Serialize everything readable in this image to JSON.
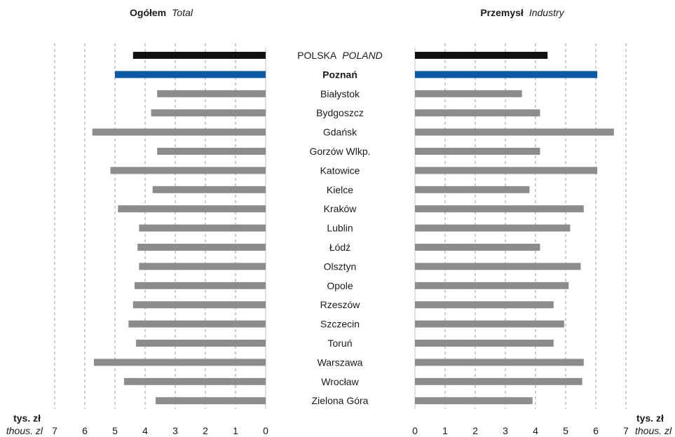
{
  "chart_data": {
    "type": "bar",
    "orientation": "horizontal",
    "categories": [
      "POLSKA",
      "Poznań",
      "Białystok",
      "Bydgoszcz",
      "Gdańsk",
      "Gorzów Wlkp.",
      "Katowice",
      "Kielce",
      "Kraków",
      "Lublin",
      "Łódź",
      "Olsztyn",
      "Opole",
      "Rzeszów",
      "Szczecin",
      "Toruń",
      "Warszawa",
      "Wrocław",
      "Zielona Góra"
    ],
    "category_sublabels": {
      "POLSKA": "POLAND"
    },
    "highlight": {
      "POLSKA": "#111111",
      "Poznań": "#0b5aa3"
    },
    "bar_color": "#8c8c8c",
    "grid": true,
    "grid_style": "dashed",
    "panels": [
      {
        "title": "Ogółem",
        "subtitle": "Total",
        "direction": "left",
        "xlim": [
          0,
          7
        ],
        "ticks": [
          0,
          1,
          2,
          3,
          4,
          5,
          6,
          7
        ],
        "values": [
          4.4,
          5.0,
          3.6,
          3.8,
          5.75,
          3.6,
          5.15,
          3.75,
          4.9,
          4.2,
          4.25,
          4.2,
          4.35,
          4.4,
          4.55,
          4.3,
          5.7,
          4.7,
          3.65
        ]
      },
      {
        "title": "Przemysł",
        "subtitle": "Industry",
        "direction": "right",
        "xlim": [
          0,
          7
        ],
        "ticks": [
          0,
          1,
          2,
          3,
          4,
          5,
          6,
          7
        ],
        "values": [
          4.4,
          6.05,
          3.55,
          4.15,
          6.6,
          4.15,
          6.05,
          3.8,
          5.6,
          5.15,
          4.15,
          5.5,
          5.1,
          4.6,
          4.95,
          4.6,
          5.6,
          5.55,
          3.9
        ]
      }
    ],
    "unit_label": "tys. zł",
    "unit_sublabel": "thous. zl"
  }
}
